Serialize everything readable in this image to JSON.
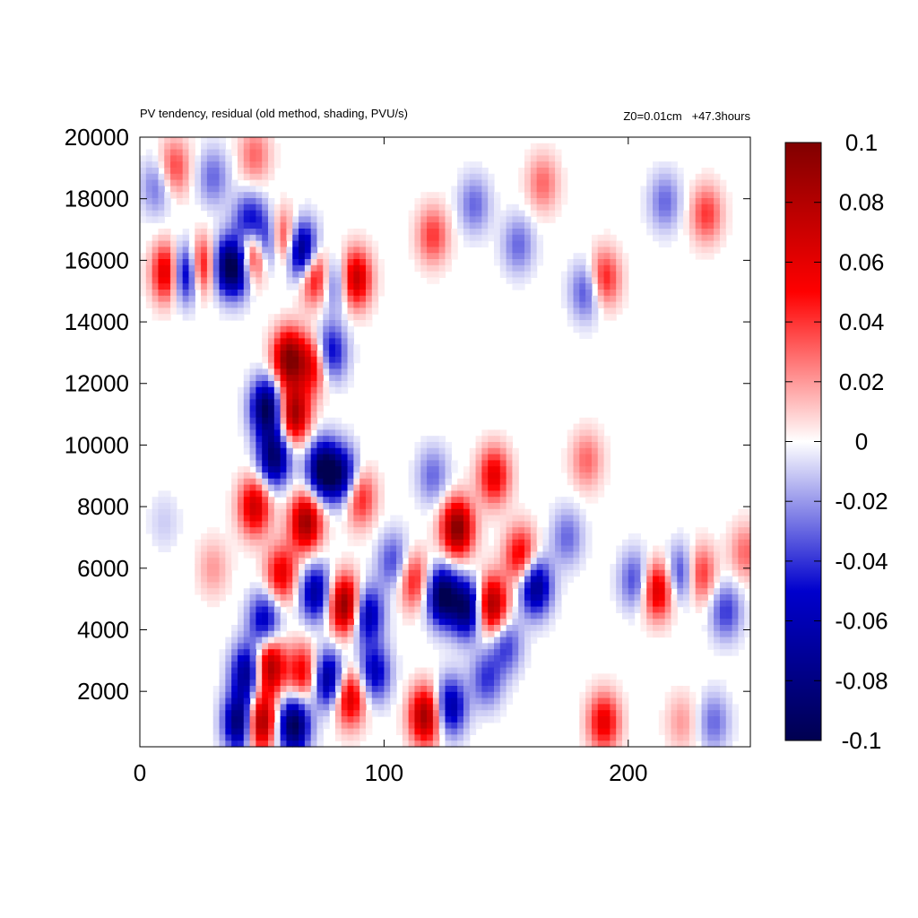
{
  "chart_data": {
    "type": "heatmap",
    "title": "PV tendency, residual (old method, shading, PVU/s)",
    "subtitle_right": "Z0=0.01cm   +47.3hours",
    "xlabel": "",
    "ylabel": "",
    "xlim": [
      0,
      250
    ],
    "ylim": [
      200,
      20000
    ],
    "x_ticks": [
      0,
      100,
      200
    ],
    "y_ticks": [
      2000,
      4000,
      6000,
      8000,
      10000,
      12000,
      14000,
      16000,
      18000,
      20000
    ],
    "x_tick_labels": [
      "0",
      "100",
      "200"
    ],
    "y_tick_labels": [
      "2000",
      "4000",
      "6000",
      "8000",
      "10000",
      "12000",
      "14000",
      "16000",
      "18000",
      "20000"
    ],
    "colorbar": {
      "range": [
        -0.1,
        0.1
      ],
      "ticks": [
        0.1,
        0.08,
        0.06,
        0.04,
        0.02,
        0,
        -0.02,
        -0.04,
        -0.06,
        -0.08,
        -0.1
      ],
      "tick_labels": [
        "0.1",
        "0.08",
        "0.06",
        "0.04",
        "0.02",
        "0",
        "-0.02",
        "-0.04",
        "-0.06",
        "-0.08",
        "-0.1"
      ],
      "colors": [
        "#000050",
        "#0000cd",
        "#ffffff",
        "#ff0000",
        "#800000"
      ]
    },
    "features": [
      {
        "x": 12,
        "y": 15600,
        "value": 0.09
      },
      {
        "x": 18,
        "y": 15600,
        "value": -0.1
      },
      {
        "x": 26,
        "y": 15800,
        "value": 0.08
      },
      {
        "x": 33,
        "y": 15800,
        "value": -0.06
      },
      {
        "x": 40,
        "y": 15800,
        "value": -0.1
      },
      {
        "x": 46,
        "y": 16200,
        "value": 0.1
      },
      {
        "x": 53,
        "y": 16500,
        "value": -0.09
      },
      {
        "x": 58,
        "y": 16600,
        "value": 0.09
      },
      {
        "x": 66,
        "y": 16300,
        "value": -0.1
      },
      {
        "x": 72,
        "y": 15500,
        "value": 0.07
      },
      {
        "x": 80,
        "y": 15300,
        "value": -0.05
      },
      {
        "x": 88,
        "y": 15400,
        "value": 0.08
      },
      {
        "x": 45,
        "y": 17200,
        "value": -0.06
      },
      {
        "x": 61,
        "y": 12800,
        "value": 0.1
      },
      {
        "x": 63,
        "y": 11000,
        "value": 0.09
      },
      {
        "x": 52,
        "y": 11200,
        "value": -0.1
      },
      {
        "x": 55,
        "y": 9600,
        "value": -0.09
      },
      {
        "x": 71,
        "y": 12600,
        "value": 0.06
      },
      {
        "x": 78,
        "y": 13000,
        "value": -0.06
      },
      {
        "x": 75,
        "y": 9200,
        "value": -0.1
      },
      {
        "x": 68,
        "y": 7500,
        "value": 0.09
      },
      {
        "x": 83,
        "y": 9000,
        "value": -0.07
      },
      {
        "x": 90,
        "y": 8300,
        "value": 0.05
      },
      {
        "x": 47,
        "y": 8000,
        "value": 0.07
      },
      {
        "x": 84,
        "y": 4800,
        "value": 0.1
      },
      {
        "x": 72,
        "y": 5200,
        "value": -0.07
      },
      {
        "x": 93,
        "y": 4500,
        "value": -0.07
      },
      {
        "x": 58,
        "y": 5800,
        "value": 0.06
      },
      {
        "x": 51,
        "y": 4300,
        "value": -0.06
      },
      {
        "x": 53,
        "y": 2800,
        "value": 0.09
      },
      {
        "x": 49,
        "y": 1000,
        "value": 0.1
      },
      {
        "x": 41,
        "y": 1000,
        "value": -0.1
      },
      {
        "x": 63,
        "y": 900,
        "value": -0.1
      },
      {
        "x": 44,
        "y": 2600,
        "value": -0.08
      },
      {
        "x": 67,
        "y": 2600,
        "value": 0.06
      },
      {
        "x": 77,
        "y": 2400,
        "value": -0.08
      },
      {
        "x": 86,
        "y": 1800,
        "value": 0.07
      },
      {
        "x": 96,
        "y": 2600,
        "value": -0.06
      },
      {
        "x": 117,
        "y": 1200,
        "value": 0.09
      },
      {
        "x": 127,
        "y": 1500,
        "value": -0.07
      },
      {
        "x": 130,
        "y": 7300,
        "value": 0.1
      },
      {
        "x": 124,
        "y": 5100,
        "value": -0.1
      },
      {
        "x": 134,
        "y": 4700,
        "value": -0.09
      },
      {
        "x": 144,
        "y": 4800,
        "value": 0.09
      },
      {
        "x": 145,
        "y": 9000,
        "value": 0.06
      },
      {
        "x": 150,
        "y": 3500,
        "value": -0.04
      },
      {
        "x": 156,
        "y": 6400,
        "value": 0.06
      },
      {
        "x": 162,
        "y": 5400,
        "value": -0.08
      },
      {
        "x": 142,
        "y": 2400,
        "value": -0.04
      },
      {
        "x": 112,
        "y": 5600,
        "value": 0.05
      },
      {
        "x": 104,
        "y": 6200,
        "value": -0.04
      },
      {
        "x": 120,
        "y": 9000,
        "value": -0.03
      },
      {
        "x": 212,
        "y": 5300,
        "value": 0.07
      },
      {
        "x": 203,
        "y": 5600,
        "value": -0.04
      },
      {
        "x": 222,
        "y": 5800,
        "value": -0.05
      },
      {
        "x": 229,
        "y": 5800,
        "value": 0.05
      },
      {
        "x": 240,
        "y": 4600,
        "value": -0.04
      },
      {
        "x": 248,
        "y": 6500,
        "value": 0.03
      },
      {
        "x": 190,
        "y": 1000,
        "value": 0.06
      },
      {
        "x": 175,
        "y": 7000,
        "value": -0.03
      },
      {
        "x": 183,
        "y": 9500,
        "value": 0.03
      },
      {
        "x": 137,
        "y": 17800,
        "value": -0.03
      },
      {
        "x": 120,
        "y": 16800,
        "value": 0.04
      },
      {
        "x": 155,
        "y": 16500,
        "value": -0.03
      },
      {
        "x": 190,
        "y": 15400,
        "value": 0.05
      },
      {
        "x": 183,
        "y": 15000,
        "value": -0.04
      },
      {
        "x": 14,
        "y": 19000,
        "value": 0.04
      },
      {
        "x": 7,
        "y": 18400,
        "value": -0.03
      },
      {
        "x": 47,
        "y": 19400,
        "value": 0.03
      },
      {
        "x": 30,
        "y": 18700,
        "value": -0.03
      },
      {
        "x": 165,
        "y": 18500,
        "value": 0.03
      },
      {
        "x": 232,
        "y": 17500,
        "value": 0.04
      },
      {
        "x": 215,
        "y": 17900,
        "value": -0.03
      },
      {
        "x": 30,
        "y": 6000,
        "value": 0.02
      },
      {
        "x": 10,
        "y": 7500,
        "value": -0.01
      },
      {
        "x": 235,
        "y": 1000,
        "value": -0.03
      },
      {
        "x": 222,
        "y": 1000,
        "value": 0.02
      }
    ]
  }
}
